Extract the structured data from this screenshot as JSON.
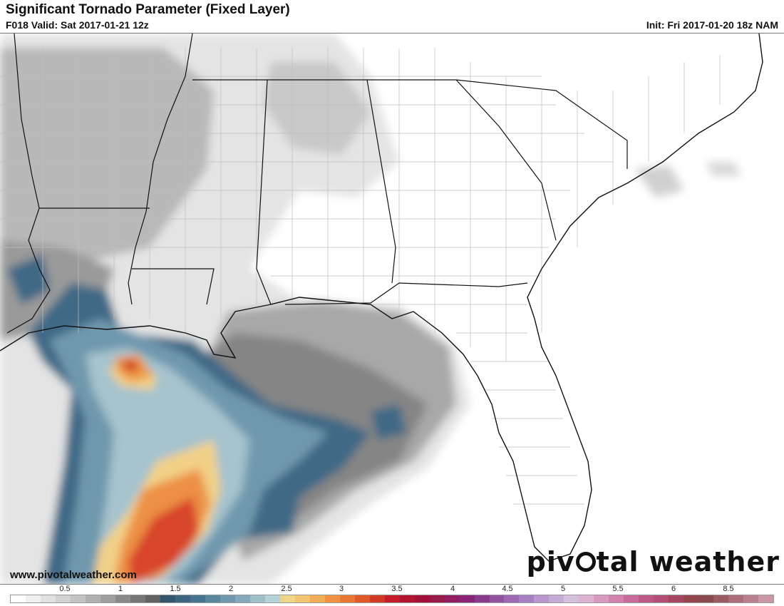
{
  "header": {
    "title": "Significant Tornado Parameter (Fixed Layer)",
    "valid": "F018 Valid: Sat 2017-01-21 12z",
    "init": "Init: Fri 2017-01-20 18z NAM"
  },
  "footer": {
    "website": "www.pivotalweather.com",
    "brand_left": "piv",
    "brand_right": "tal weather"
  },
  "legend": {
    "ticks": [
      "0.5",
      "1",
      "1.5",
      "2",
      "2.5",
      "3",
      "3.5",
      "4",
      "4.5",
      "5",
      "5.5",
      "6",
      "8.5"
    ],
    "colors": [
      "#ffffff",
      "#f0f0f0",
      "#e1e1e1",
      "#d2d2d2",
      "#c3c3c3",
      "#b1b1b1",
      "#9e9e9e",
      "#8a8a8a",
      "#767676",
      "#626262",
      "#34556d",
      "#3c6581",
      "#477591",
      "#5a86a0",
      "#6f98ad",
      "#86aabb",
      "#a0bfca",
      "#b8d1d8",
      "#efd58a",
      "#f4c46f",
      "#f3ac56",
      "#ef9342",
      "#e97833",
      "#e15b29",
      "#d33a23",
      "#c41d27",
      "#b3132f",
      "#a31039",
      "#981a4a",
      "#911d62",
      "#8b2477",
      "#8a3a8d",
      "#9152a1",
      "#9d69b2",
      "#aa7fc1",
      "#b996cd",
      "#c6abd6",
      "#d4c0df",
      "#dfb1d1",
      "#d99ac0",
      "#d283ad",
      "#c96c9a",
      "#bd5884",
      "#b54d76",
      "#a6455f",
      "#974452",
      "#8b4a4f",
      "#9a5a62",
      "#ab6d78",
      "#bc8191",
      "#cc97a5"
    ]
  },
  "map": {
    "region": "Southeastern United States",
    "field": "Significant Tornado Parameter",
    "colors": {
      "grey_light": "#e2e2e2",
      "grey_mid": "#bdbdbd",
      "grey_dark": "#8f8f8f",
      "blue_dark": "#3d6783",
      "blue_mid": "#6d96ac",
      "blue_light": "#a6c4cf",
      "yellow": "#f2cf82",
      "orange": "#ee9a46",
      "red": "#d9452a"
    }
  }
}
